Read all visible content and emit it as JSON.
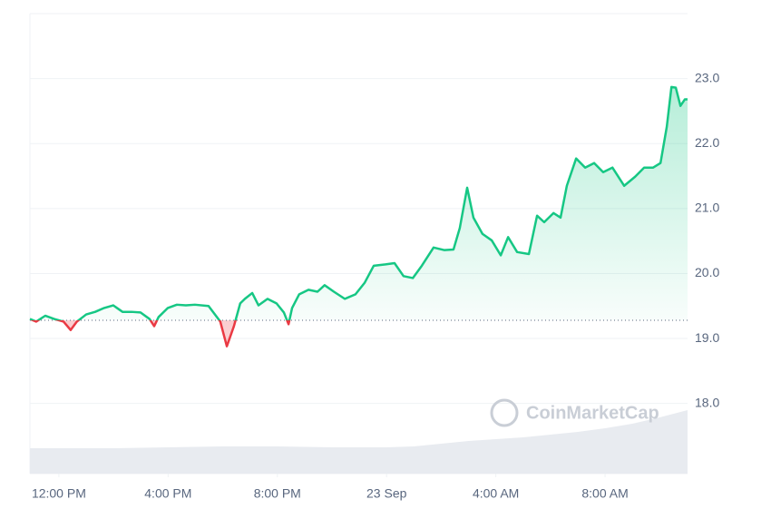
{
  "chart_data": {
    "type": "line",
    "brand": "CoinMarketCap",
    "x": [
      -1.06,
      -0.83,
      -0.5,
      -0.17,
      0.17,
      0.43,
      0.66,
      1.0,
      1.33,
      1.66,
      1.99,
      2.33,
      2.66,
      2.99,
      3.32,
      3.49,
      3.65,
      3.99,
      4.32,
      4.65,
      4.98,
      5.48,
      5.91,
      6.15,
      6.41,
      6.64,
      6.81,
      7.08,
      7.31,
      7.64,
      7.97,
      8.24,
      8.41,
      8.54,
      8.8,
      9.14,
      9.47,
      9.73,
      10.07,
      10.47,
      10.86,
      11.2,
      11.53,
      11.96,
      12.29,
      12.62,
      12.96,
      13.29,
      13.72,
      14.12,
      14.45,
      14.68,
      14.95,
      15.18,
      15.51,
      15.85,
      16.18,
      16.45,
      16.78,
      17.21,
      17.51,
      17.77,
      18.11,
      18.37,
      18.6,
      18.94,
      19.27,
      19.6,
      19.93,
      20.27,
      20.7,
      21.1,
      21.43,
      21.76,
      22.03,
      22.26,
      22.43,
      22.59,
      22.76,
      22.92,
      23.02
    ],
    "values": [
      19.3,
      19.26,
      19.35,
      19.3,
      19.26,
      19.13,
      19.26,
      19.37,
      19.41,
      19.47,
      19.51,
      19.41,
      19.41,
      19.4,
      19.3,
      19.19,
      19.33,
      19.47,
      19.52,
      19.51,
      19.52,
      19.5,
      19.26,
      18.88,
      19.19,
      19.54,
      19.61,
      19.7,
      19.51,
      19.61,
      19.54,
      19.4,
      19.22,
      19.47,
      19.68,
      19.75,
      19.72,
      19.82,
      19.72,
      19.61,
      19.68,
      19.86,
      20.12,
      20.14,
      20.16,
      19.96,
      19.93,
      20.12,
      20.4,
      20.36,
      20.37,
      20.7,
      21.32,
      20.86,
      20.61,
      20.51,
      20.28,
      20.56,
      20.33,
      20.3,
      20.89,
      20.79,
      20.93,
      20.86,
      21.35,
      21.77,
      21.63,
      21.7,
      21.56,
      21.63,
      21.35,
      21.49,
      21.63,
      21.63,
      21.7,
      22.26,
      22.87,
      22.86,
      22.58,
      22.68,
      22.68
    ],
    "reference": 19.28,
    "up_color": "#16c784",
    "down_color": "#ea3943",
    "volume": {
      "color": "#e8ebf0",
      "x": [
        -1.06,
        0,
        2,
        4,
        6,
        8,
        10,
        12,
        13,
        14,
        15,
        16,
        17,
        18,
        19,
        20,
        21,
        22,
        23.02
      ],
      "values": [
        28,
        28,
        28,
        29,
        30,
        30,
        29,
        29,
        30,
        33,
        36,
        38,
        40,
        43,
        46,
        50,
        55,
        62,
        70
      ]
    },
    "xlim": [
      -1.06,
      23.02
    ],
    "xticks": [
      {
        "value": 0,
        "label": "12:00 PM"
      },
      {
        "value": 4,
        "label": "4:00 PM"
      },
      {
        "value": 8,
        "label": "8:00 PM"
      },
      {
        "value": 12,
        "label": "23 Sep"
      },
      {
        "value": 16,
        "label": "4:00 AM"
      },
      {
        "value": 20,
        "label": "8:00 AM"
      }
    ],
    "ylim": [
      16.92,
      24.0
    ],
    "yticks": [
      {
        "value": 18,
        "label": "18.0"
      },
      {
        "value": 19,
        "label": "19.0"
      },
      {
        "value": 20,
        "label": "20.0"
      },
      {
        "value": 21,
        "label": "21.0"
      },
      {
        "value": 22,
        "label": "22.0"
      },
      {
        "value": 23,
        "label": "23.0"
      }
    ],
    "grid": true
  }
}
